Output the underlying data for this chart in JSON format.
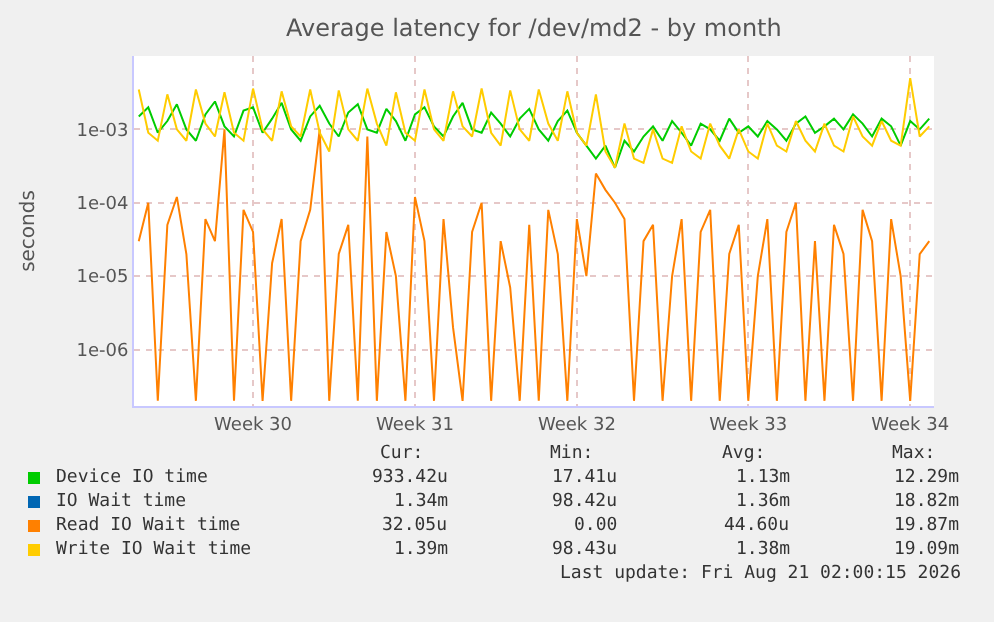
{
  "chart_data": {
    "type": "line",
    "title": "Average latency for /dev/md2 - by month",
    "ylabel": "seconds",
    "categories": [
      null,
      null,
      null,
      null,
      null,
      null,
      null,
      null,
      null,
      null,
      null,
      null,
      "Week 30",
      null,
      null,
      null,
      null,
      null,
      null,
      null,
      null,
      null,
      null,
      null,
      null,
      null,
      null,
      null,
      null,
      "Week 31",
      null,
      null,
      null,
      null,
      null,
      null,
      null,
      null,
      null,
      null,
      null,
      null,
      null,
      null,
      null,
      null,
      "Week 32",
      null,
      null,
      null,
      null,
      null,
      null,
      null,
      null,
      null,
      null,
      null,
      null,
      null,
      null,
      null,
      null,
      null,
      "Week 33",
      null,
      null,
      null,
      null,
      null,
      null,
      null,
      null,
      null,
      null,
      null,
      null,
      null,
      null,
      null,
      null,
      "Week 34",
      null,
      null
    ],
    "log": "y",
    "ylim": [
      1.7e-07,
      0.01
    ],
    "yticks": [
      {
        "value": 1e-06,
        "label": "1e-06"
      },
      {
        "value": 1e-05,
        "label": "1e-05"
      },
      {
        "value": 0.0001,
        "label": "1e-04"
      },
      {
        "value": 0.001,
        "label": "1e-03"
      }
    ],
    "grid": true,
    "legend": "bottom",
    "series": [
      {
        "name": "Device IO time",
        "color": "#00cc00",
        "values": [
          0.0015,
          0.002,
          0.0009,
          0.0013,
          0.0022,
          0.001,
          0.0007,
          0.0016,
          0.0024,
          0.0011,
          0.0008,
          0.0018,
          0.002,
          0.0009,
          0.0014,
          0.0023,
          0.001,
          0.0007,
          0.0015,
          0.0021,
          0.0012,
          0.0008,
          0.0017,
          0.0022,
          0.001,
          0.0009,
          0.0019,
          0.0013,
          0.0007,
          0.0016,
          0.002,
          0.0011,
          0.0008,
          0.0015,
          0.0023,
          0.001,
          0.0009,
          0.0017,
          0.0012,
          0.0008,
          0.0014,
          0.0019,
          0.001,
          0.0007,
          0.0013,
          0.0018,
          0.0009,
          0.0006,
          0.0004,
          0.0006,
          0.0003,
          0.0007,
          0.0005,
          0.0008,
          0.0011,
          0.0007,
          0.0013,
          0.0009,
          0.0006,
          0.0012,
          0.001,
          0.0007,
          0.0014,
          0.0009,
          0.0011,
          0.0008,
          0.0013,
          0.001,
          0.0007,
          0.0012,
          0.0015,
          0.0009,
          0.0011,
          0.0014,
          0.001,
          0.0016,
          0.0012,
          0.0008,
          0.0014,
          0.0011,
          0.0006,
          0.0013,
          0.001,
          0.0014
        ]
      },
      {
        "name": "IO Wait time",
        "color": "#0066b3",
        "values": [
          null,
          null,
          null,
          null,
          null,
          null,
          null,
          null,
          null,
          null,
          null,
          null,
          null,
          null,
          null,
          null,
          null,
          null,
          null,
          null,
          null,
          null,
          null,
          null,
          null,
          null,
          null,
          null,
          null,
          null,
          null,
          null,
          null,
          null,
          null,
          null,
          null,
          null,
          null,
          null,
          null,
          null,
          null,
          null,
          null,
          null,
          null,
          null,
          null,
          null,
          null,
          null,
          null,
          null,
          null,
          null,
          null,
          null,
          null,
          null,
          null,
          null,
          null,
          null,
          null,
          null,
          null,
          null,
          null,
          null,
          null,
          null,
          null,
          null,
          null,
          null,
          null,
          null,
          null,
          null,
          null,
          null,
          null,
          null
        ]
      },
      {
        "name": "Read IO Wait time",
        "color": "#ff8000",
        "values": [
          3e-05,
          0.0001,
          2e-07,
          5e-05,
          0.00012,
          2e-05,
          2e-07,
          6e-05,
          3e-05,
          0.001,
          2e-07,
          8e-05,
          4e-05,
          2e-07,
          1.5e-05,
          6e-05,
          2e-07,
          3e-05,
          8e-05,
          0.001,
          2e-07,
          2e-05,
          5e-05,
          2e-07,
          0.0008,
          2e-07,
          4e-05,
          1e-05,
          2e-07,
          0.00012,
          3e-05,
          2e-07,
          6e-05,
          2e-06,
          2e-07,
          4e-05,
          0.0001,
          2e-07,
          3e-05,
          7e-06,
          2e-07,
          5e-05,
          2e-07,
          8e-05,
          2e-05,
          2e-07,
          6e-05,
          1e-05,
          0.00025,
          0.00015,
          0.0001,
          6e-05,
          2e-07,
          3e-05,
          5e-05,
          2e-07,
          1e-05,
          6e-05,
          2e-07,
          4e-05,
          8e-05,
          2e-07,
          2e-05,
          5e-05,
          2e-07,
          1e-05,
          6e-05,
          2e-07,
          4e-05,
          0.0001,
          2e-07,
          3e-05,
          2e-07,
          5e-05,
          2e-05,
          2e-07,
          8e-05,
          3e-05,
          2e-07,
          6e-05,
          1e-05,
          2e-07,
          2e-05,
          3e-05
        ]
      },
      {
        "name": "Write IO Wait time",
        "color": "#ffcc00",
        "values": [
          0.0035,
          0.0009,
          0.0007,
          0.003,
          0.001,
          0.0007,
          0.0035,
          0.0012,
          0.0008,
          0.0032,
          0.0009,
          0.0007,
          0.0036,
          0.001,
          0.0007,
          0.0033,
          0.0011,
          0.0008,
          0.0035,
          0.0009,
          0.0005,
          0.0034,
          0.001,
          0.0007,
          0.0036,
          0.0012,
          0.0006,
          0.0032,
          0.0009,
          0.0007,
          0.0035,
          0.001,
          0.0007,
          0.0033,
          0.0011,
          0.0008,
          0.0036,
          0.0009,
          0.0006,
          0.0034,
          0.001,
          0.0007,
          0.0035,
          0.0012,
          0.0007,
          0.0033,
          0.0009,
          0.0006,
          0.003,
          0.0005,
          0.0003,
          0.0012,
          0.0004,
          0.00035,
          0.001,
          0.0004,
          0.00035,
          0.0011,
          0.0005,
          0.0004,
          0.0012,
          0.0006,
          0.0004,
          0.001,
          0.0005,
          0.0004,
          0.0012,
          0.0006,
          0.0005,
          0.0013,
          0.0007,
          0.0005,
          0.0012,
          0.0006,
          0.0005,
          0.0015,
          0.0008,
          0.0006,
          0.0013,
          0.0007,
          0.0006,
          0.005,
          0.0008,
          0.0011
        ]
      }
    ],
    "annotations": [
      "Cur:",
      "Min:",
      "Avg:",
      "Max:",
      "933.42u",
      "17.41u",
      "1.13m",
      "12.29m",
      "1.34m",
      "98.42u",
      "1.36m",
      "18.82m",
      "32.05u",
      "0.00",
      "44.60u",
      "19.87m",
      "1.39m",
      "98.43u",
      "1.38m",
      "19.09m",
      "Last update: Fri Aug 21 02:00:15 2026"
    ]
  }
}
